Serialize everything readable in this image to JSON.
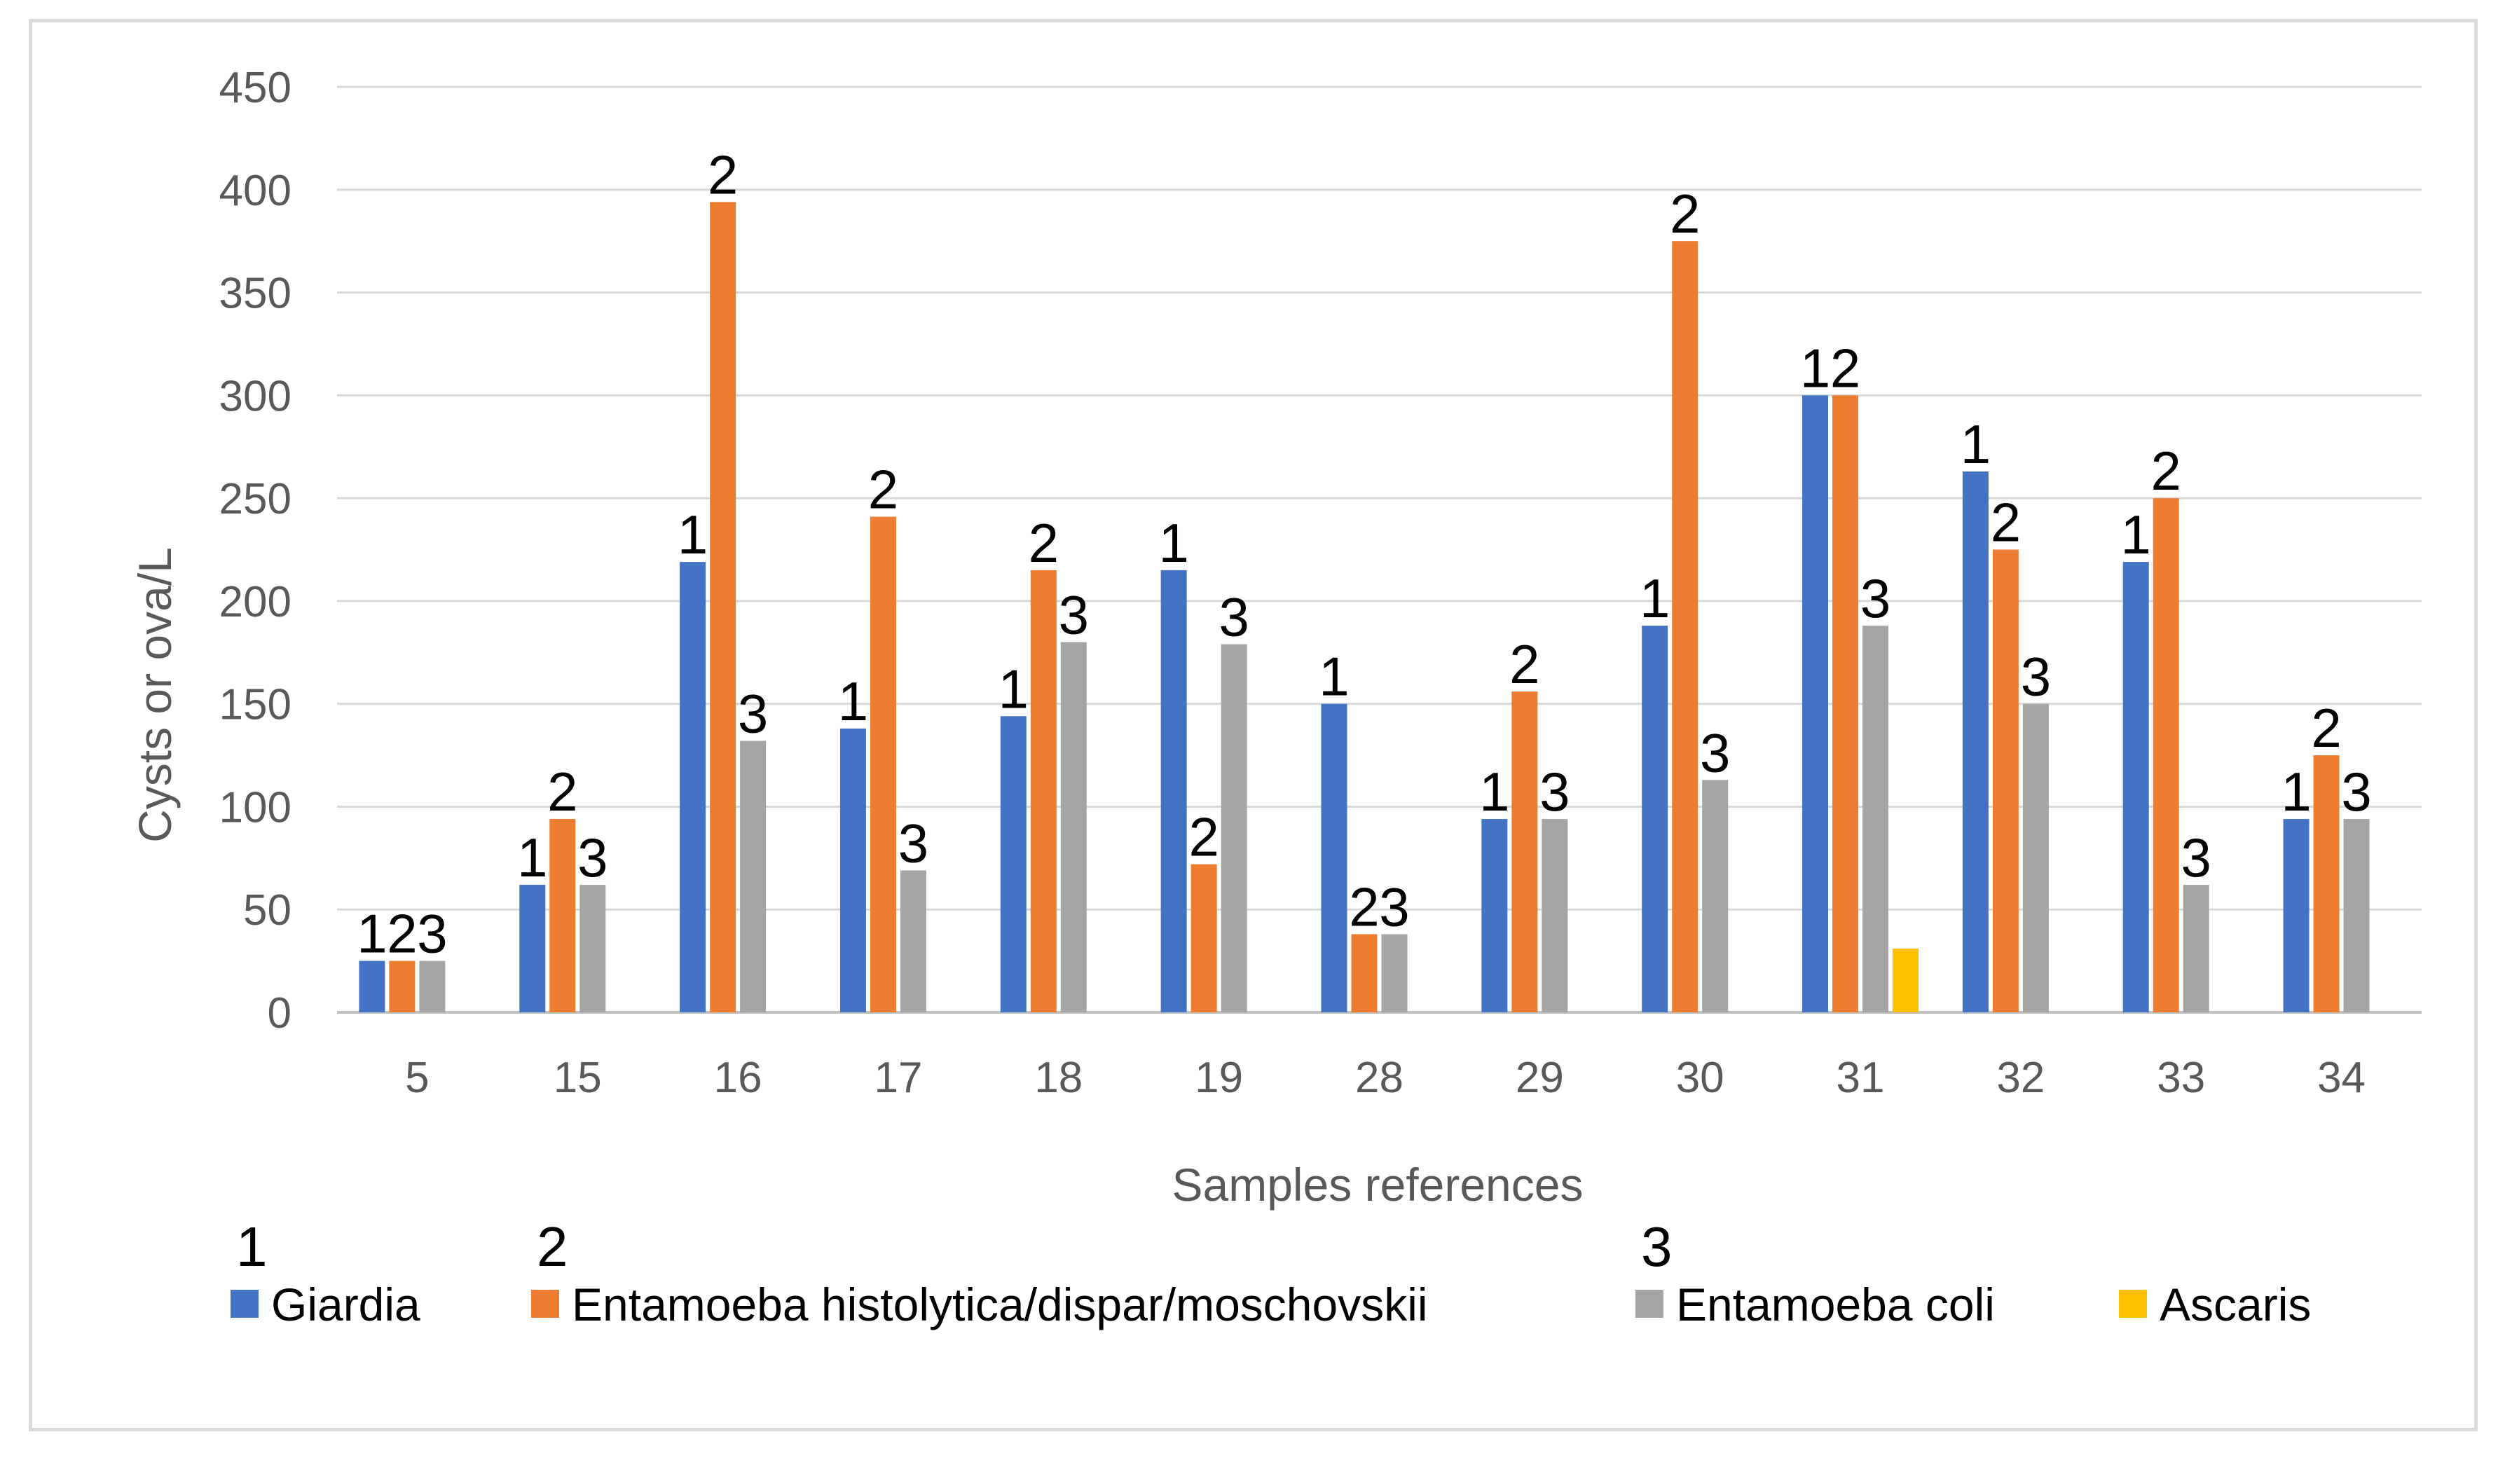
{
  "chart_data": {
    "type": "bar",
    "title": "",
    "xlabel": "Samples references",
    "ylabel": "Cysts or ova/L",
    "ylim": [
      0,
      450
    ],
    "yticks": [
      0,
      50,
      100,
      150,
      200,
      250,
      300,
      350,
      400,
      450
    ],
    "grid": true,
    "legend_position": "bottom",
    "categories": [
      "5",
      "15",
      "16",
      "17",
      "18",
      "19",
      "28",
      "29",
      "30",
      "31",
      "32",
      "33",
      "34"
    ],
    "series": [
      {
        "name": "Giardia",
        "marker_label": "1",
        "color": "#4472c4",
        "values": [
          25,
          62,
          219,
          138,
          144,
          215,
          150,
          94,
          188,
          300,
          263,
          219,
          94
        ]
      },
      {
        "name": "Entamoeba histolytica/dispar/moschovskii",
        "marker_label": "2",
        "color": "#ed7d31",
        "values": [
          25,
          94,
          394,
          241,
          215,
          72,
          38,
          156,
          375,
          300,
          225,
          250,
          125
        ]
      },
      {
        "name": "Entamoeba coli",
        "marker_label": "3",
        "color": "#a5a5a5",
        "values": [
          25,
          62,
          132,
          69,
          180,
          179,
          38,
          94,
          113,
          188,
          150,
          62,
          94
        ]
      },
      {
        "name": "Ascaris",
        "marker_label": "",
        "color": "#ffc000",
        "values": [
          0,
          0,
          0,
          0,
          0,
          0,
          0,
          0,
          0,
          31,
          0,
          0,
          0
        ]
      }
    ]
  }
}
